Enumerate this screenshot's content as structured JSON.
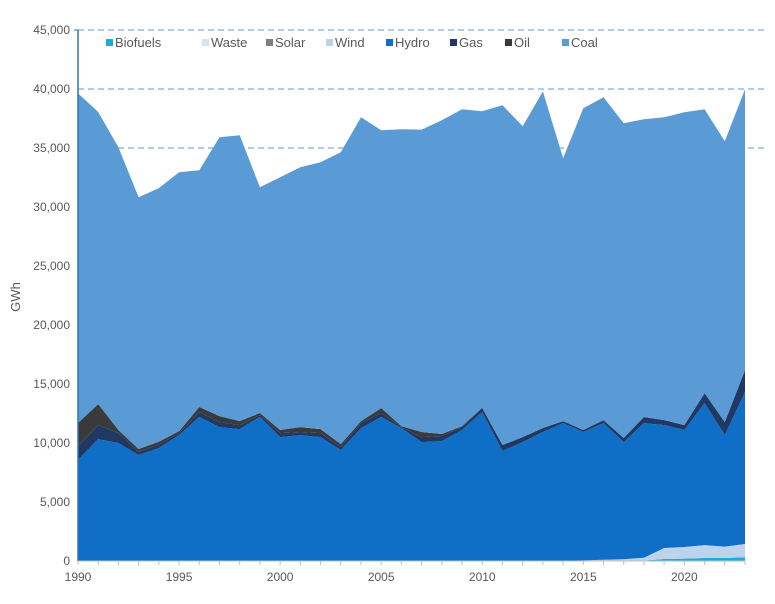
{
  "chart_data": {
    "type": "area",
    "stacked": true,
    "title": "",
    "xlabel": "",
    "ylabel": "GWh",
    "xlim": [
      1990,
      2023
    ],
    "ylim": [
      0,
      45000
    ],
    "y_ticks": [
      "0",
      "5,000",
      "10,000",
      "15,000",
      "20,000",
      "25,000",
      "30,000",
      "35,000",
      "40,000",
      "45,000"
    ],
    "y_tick_values": [
      0,
      5000,
      10000,
      15000,
      20000,
      25000,
      30000,
      35000,
      40000,
      45000
    ],
    "x_ticks": [
      "1990",
      "1995",
      "2000",
      "2005",
      "2010",
      "2015",
      "2020"
    ],
    "x_tick_values": [
      1990,
      1995,
      2000,
      2005,
      2010,
      2015,
      2020
    ],
    "gridlines": [
      35000,
      40000,
      45000
    ],
    "legend_position": "top",
    "x": [
      1990,
      1991,
      1992,
      1993,
      1994,
      1995,
      1996,
      1997,
      1998,
      1999,
      2000,
      2001,
      2002,
      2003,
      2004,
      2005,
      2006,
      2007,
      2008,
      2009,
      2010,
      2011,
      2012,
      2013,
      2014,
      2015,
      2016,
      2017,
      2018,
      2019,
      2020,
      2021,
      2022,
      2023
    ],
    "series": [
      {
        "name": "Biofuels",
        "color": "#1fa9e1",
        "values": [
          0,
          0,
          0,
          0,
          0,
          0,
          0,
          0,
          0,
          0,
          0,
          0,
          0,
          0,
          0,
          0,
          0,
          0,
          0,
          0,
          0,
          0,
          0,
          0,
          0,
          0,
          10,
          20,
          40,
          170,
          200,
          250,
          250,
          320
        ]
      },
      {
        "name": "Waste",
        "color": "#d6e4f3",
        "values": [
          0,
          0,
          0,
          0,
          0,
          0,
          0,
          0,
          0,
          0,
          0,
          0,
          0,
          0,
          0,
          0,
          0,
          0,
          0,
          0,
          0,
          0,
          0,
          0,
          0,
          0,
          0,
          0,
          0,
          0,
          0,
          0,
          0,
          0
        ]
      },
      {
        "name": "Solar",
        "color": "#7f7f7f",
        "values": [
          0,
          0,
          0,
          0,
          0,
          0,
          0,
          0,
          0,
          0,
          0,
          0,
          0,
          0,
          0,
          0,
          0,
          0,
          0,
          0,
          0,
          0,
          0,
          0,
          0,
          0,
          0,
          0,
          0,
          0,
          0,
          0,
          0,
          0
        ]
      },
      {
        "name": "Wind",
        "color": "#bdd3ec",
        "values": [
          0,
          0,
          0,
          0,
          0,
          0,
          0,
          0,
          0,
          0,
          0,
          0,
          0,
          0,
          0,
          0,
          0,
          0,
          0,
          0,
          0,
          0,
          0,
          0,
          0,
          50,
          90,
          130,
          240,
          930,
          990,
          1100,
          970,
          1120
        ]
      },
      {
        "name": "Hydro",
        "color": "#0f6fc6",
        "values": [
          8560,
          10330,
          10000,
          8980,
          9570,
          10670,
          12200,
          11350,
          11180,
          12200,
          10500,
          10670,
          10500,
          9400,
          11260,
          12200,
          11260,
          10080,
          10160,
          11100,
          12620,
          9320,
          10080,
          10930,
          11690,
          10880,
          11590,
          9930,
          11410,
          10420,
          9910,
          12030,
          9450,
          12870
        ]
      },
      {
        "name": "Gas",
        "color": "#203864",
        "values": [
          1190,
          1190,
          850,
          260,
          280,
          170,
          420,
          420,
          340,
          170,
          340,
          260,
          340,
          260,
          430,
          340,
          90,
          420,
          430,
          250,
          340,
          510,
          420,
          340,
          170,
          170,
          250,
          340,
          510,
          420,
          420,
          850,
          1100,
          1870
        ]
      },
      {
        "name": "Oil",
        "color": "#3a3a3a",
        "values": [
          1950,
          1780,
          250,
          250,
          250,
          170,
          430,
          510,
          340,
          170,
          260,
          420,
          340,
          250,
          170,
          420,
          80,
          430,
          170,
          80,
          40,
          0,
          0,
          0,
          0,
          0,
          0,
          0,
          0,
          0,
          0,
          0,
          0,
          0
        ]
      },
      {
        "name": "Coal",
        "color": "#5b9bd5",
        "values": [
          27940,
          24750,
          23960,
          21340,
          21500,
          21940,
          20070,
          23630,
          24220,
          19140,
          21420,
          22020,
          22620,
          24730,
          25750,
          23550,
          25160,
          25630,
          26590,
          26850,
          25110,
          28790,
          26340,
          28530,
          22270,
          27270,
          27360,
          26680,
          25240,
          25670,
          26510,
          24050,
          23800,
          23800
        ]
      }
    ]
  }
}
